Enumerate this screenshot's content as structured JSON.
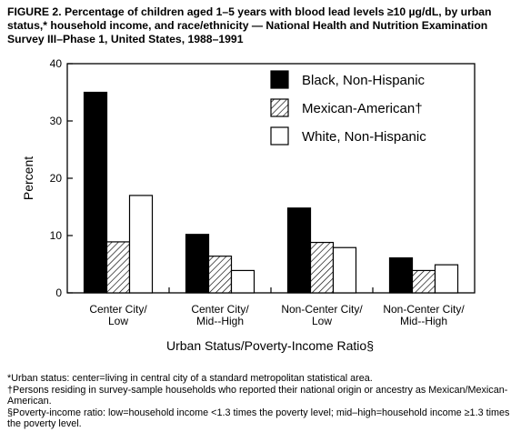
{
  "title": "FIGURE 2. Percentage of children aged 1–5 years with blood lead levels ≥10 µg/dL, by urban status,* household income, and race/ethnicity — National Health and Nutrition Examination Survey III–Phase 1, United States, 1988–1991",
  "footnotes": [
    "*Urban status: center=living in central city of a standard metropolitan statistical area.",
    "†Persons residing in survey-sample households who reported their national origin or ancestry as Mexican/Mexican-American.",
    "§Poverty-income ratio: low=household income <1.3 times the poverty level; mid–high=household income ≥1.3 times the poverty level."
  ],
  "chart_data": {
    "type": "bar",
    "ylabel": "Percent",
    "xlabel": "Urban Status/Poverty-Income Ratio§",
    "ylim": [
      0,
      40
    ],
    "yticks": [
      "0",
      "10",
      "20",
      "30",
      "40"
    ],
    "grid": false,
    "legend_position": "top-right",
    "categories": [
      [
        "Center City/",
        "Low"
      ],
      [
        "Center City/",
        "Mid--High"
      ],
      [
        "Non-Center City/",
        "Low"
      ],
      [
        "Non-Center City/",
        "Mid--High"
      ]
    ],
    "series": [
      {
        "name": "Black, Non-Hispanic",
        "fill": "solid",
        "color": "#000000",
        "values": [
          35,
          10.2,
          14.8,
          6.1
        ]
      },
      {
        "name": "Mexican-American†",
        "fill": "hatch",
        "color": "#000000",
        "values": [
          8.9,
          6.4,
          8.8,
          3.9
        ]
      },
      {
        "name": "White, Non-Hispanic",
        "fill": "empty",
        "color": "#ffffff",
        "values": [
          17,
          3.9,
          7.9,
          4.9
        ]
      }
    ]
  }
}
